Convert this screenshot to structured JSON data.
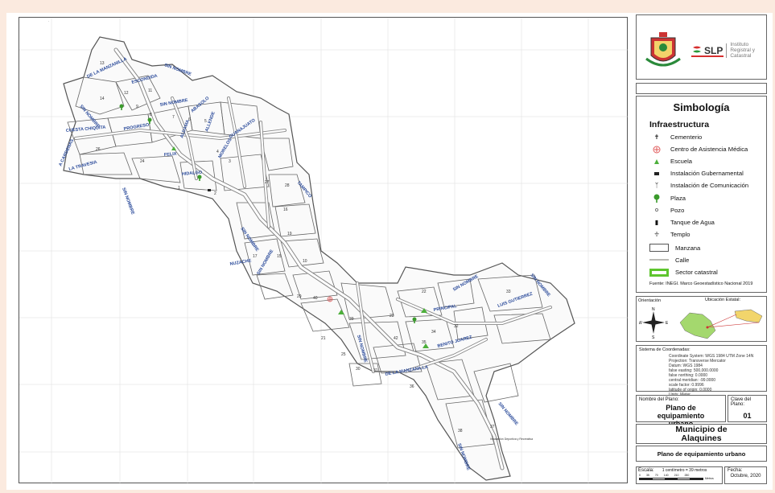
{
  "header": {
    "institute_name": "Instituto Registral y Catastral",
    "brand_short": "SLP"
  },
  "legend": {
    "title": "Simbología",
    "section": "Infraestructura",
    "items": [
      {
        "label": "Cementerio",
        "icon": "cross-icon"
      },
      {
        "label": "Centro de Asistencia Médica",
        "icon": "medical-cross-icon"
      },
      {
        "label": "Escuela",
        "icon": "school-icon"
      },
      {
        "label": "Instalación Gubernamental",
        "icon": "government-icon"
      },
      {
        "label": "Instalación de Comunicación",
        "icon": "antenna-icon"
      },
      {
        "label": "Plaza",
        "icon": "tree-icon"
      },
      {
        "label": "Pozo",
        "icon": "well-icon"
      },
      {
        "label": "Tanque de Agua",
        "icon": "water-tank-icon"
      },
      {
        "label": "Templo",
        "icon": "temple-icon"
      }
    ],
    "manzana": "Manzana",
    "calle": "Calle",
    "sector": "Sector catastral",
    "source": "Fuente: INEGI. Marco Geoestadístico Nacional 2019",
    "colors": {
      "sector": "#5ec52e",
      "street": "#b9b9b4",
      "plaza": "#3a9a2b",
      "school": "#4caf3a",
      "medical": "#e05a5a"
    }
  },
  "orientation": {
    "label": "Orientación",
    "n": "N",
    "s": "S",
    "e": "E",
    "w": "W"
  },
  "location": {
    "label": "Ubicación Estatal:"
  },
  "coords": {
    "label": "Sistema de Coordenadas:",
    "lines": [
      "Coordinate System: WGS 1984 UTM Zone 14N",
      "Projection: Transverse Mercator",
      "Datum: WGS 1984",
      "false easting: 500,000.0000",
      "false northing: 0.0000",
      "central meridian: -99.0000",
      "scale factor: 0.9996",
      "latitude of origin: 0.0000",
      "Units: Meter"
    ]
  },
  "plan": {
    "name_label": "Nombre del Plano:",
    "name_value": "Plano de equipamiento urbano",
    "key_label": "Clave del Plano:",
    "key_value": "01"
  },
  "municipality": {
    "title": "Municipio de Alaquines",
    "subtitle": "Plano de equipamiento urbano"
  },
  "footer": {
    "scale_label": "Escala:",
    "scale_value": "1 centímetro = 39 metros",
    "scale_ticks": [
      "0",
      "35",
      "70",
      "140",
      "210",
      "280"
    ],
    "scale_unit": "Metros",
    "date_label": "Fecha:",
    "date_value": "Octubre, 2020"
  },
  "map_labels": {
    "streets": [
      "DE LA MANZANILLA",
      "ESCONDIDA",
      "SIN NOMBRE",
      "SIN NOMBRE",
      "SIN NOMBRE",
      "CUESTA CHIQUITA",
      "PROGRESO",
      "ALDAMA",
      "ALLENDE",
      "ABASOLO",
      "GUANAJUATO",
      "A CARDENAS",
      "LA TRAVESIA",
      "SIN NOMBRE",
      "FELIX",
      "HIDALGO",
      "MORELOS",
      "TAMPICO",
      "SIN NOMBRE",
      "NUZACHE",
      "SIN NOMBRE",
      "SIN NOMBRE",
      "SIN NOMBRE",
      "LUIS GUTIERREZ",
      "PRINCIPAL",
      "BENITO JUAREZ",
      "DE LA MANZANILLA",
      "SIN NOMBRE",
      "SIN NOMBRE",
      "SIN NOMBRE"
    ],
    "blocks": [
      "14",
      "13",
      "12",
      "11",
      "9",
      "8",
      "7",
      "6",
      "5",
      "4",
      "3",
      "2",
      "1",
      "24",
      "26",
      "27",
      "28",
      "29",
      "31",
      "22",
      "33",
      "32",
      "34",
      "35",
      "36",
      "37",
      "38",
      "39",
      "40",
      "42",
      "16",
      "19",
      "17",
      "21",
      "23",
      "15",
      "10",
      "25",
      "30"
    ],
    "annotation": "Instalación Deportiva y Recreativa"
  }
}
